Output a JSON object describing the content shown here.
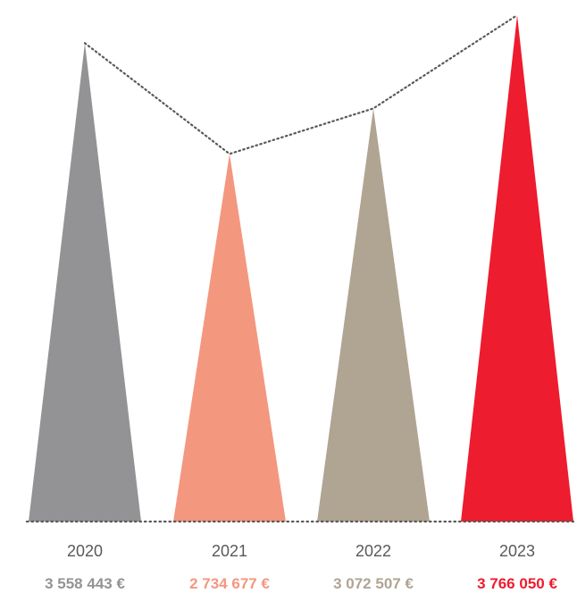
{
  "chart_data": {
    "type": "bar",
    "title": "",
    "xlabel": "",
    "ylabel": "",
    "ylim": [
      0,
      3766050
    ],
    "grid": false,
    "categories": [
      "2020",
      "2021",
      "2022",
      "2023"
    ],
    "values": [
      3558443,
      2734677,
      3072507,
      3766050
    ],
    "value_labels": [
      "3 558 443 €",
      "2 734 677 €",
      "3 072 507 €",
      "3 766 050 €"
    ],
    "colors": [
      "#939395",
      "#f4977f",
      "#b0a493",
      "#ed1c2e"
    ],
    "annotations": {
      "connector_line_color": "#595959",
      "baseline_color": "#595959"
    }
  }
}
